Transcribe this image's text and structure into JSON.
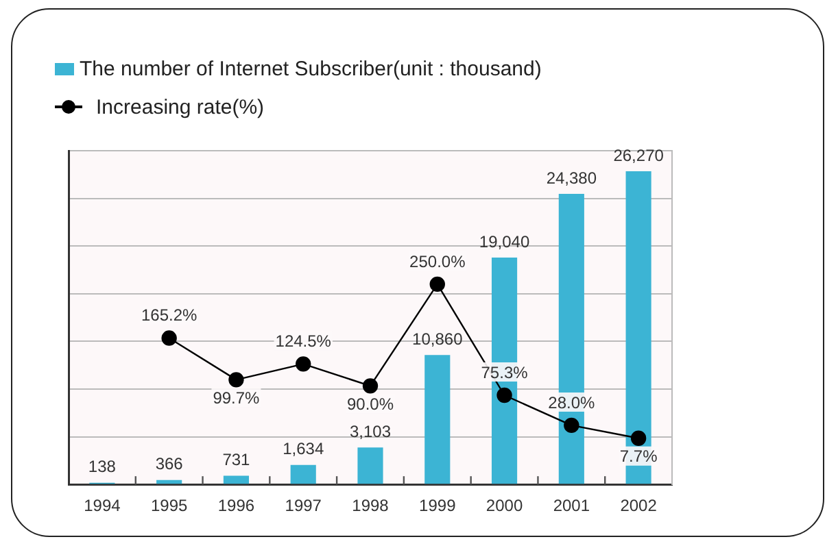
{
  "chart_data": {
    "type": "bar",
    "categories": [
      "1994",
      "1995",
      "1996",
      "1997",
      "1998",
      "1999",
      "2000",
      "2001",
      "2002"
    ],
    "series": [
      {
        "name": "The number of Internet Subscriber(unit : thousand)",
        "color": "#3cb4d4",
        "values": [
          138,
          366,
          731,
          1634,
          3103,
          10860,
          19040,
          24380,
          26270
        ],
        "value_labels": [
          "138",
          "366",
          "731",
          "1,634",
          "3,103",
          "10,860",
          "19,040",
          "24,380",
          "26,270"
        ]
      },
      {
        "name": "Increasing rate(%)",
        "type": "line",
        "axis": "y2",
        "color": "#000000",
        "values": [
          null,
          165.2,
          99.7,
          124.5,
          90.0,
          250.0,
          75.3,
          28.0,
          7.7
        ],
        "value_labels": [
          null,
          "165.2%",
          "99.7%",
          "124.5%",
          "90.0%",
          "250.0%",
          "75.3%",
          "28.0%",
          "7.7%"
        ]
      }
    ],
    "ylim": [
      0,
      28000
    ],
    "yticks": [
      {
        "value": 0,
        "label": null
      },
      {
        "value": 4000,
        "label": null
      },
      {
        "value": 8000,
        "label": null
      },
      {
        "value": 12000,
        "label": null
      },
      {
        "value": 16000,
        "label": null
      },
      {
        "value": 20000,
        "label": null
      },
      {
        "value": 24000,
        "label": null
      },
      {
        "value": 28000,
        "label": null
      }
    ],
    "y2lim": [
      -65,
      460
    ],
    "grid": "y",
    "legend": "top left",
    "tick_labels": "x",
    "marker": "circle",
    "line_style": "solid"
  }
}
